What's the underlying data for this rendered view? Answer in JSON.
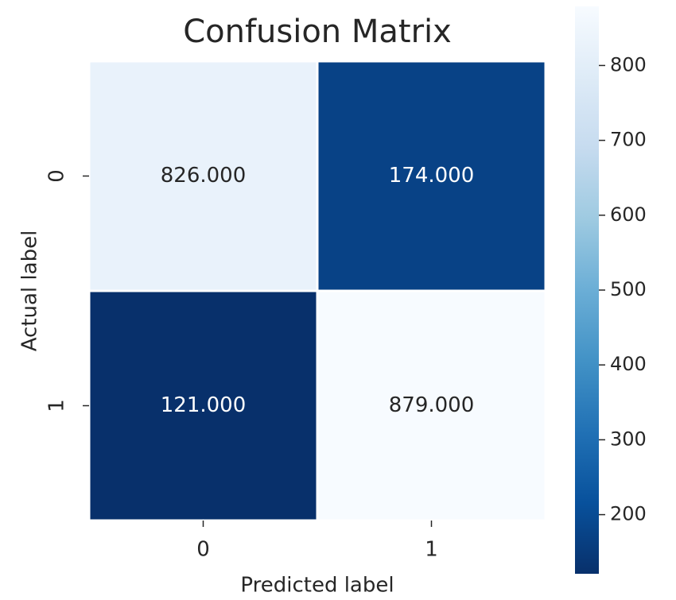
{
  "chart_data": {
    "type": "heatmap",
    "title": "Confusion Matrix",
    "xlabel": "Predicted label",
    "ylabel": "Actual label",
    "x_categories": [
      "0",
      "1"
    ],
    "y_categories": [
      "0",
      "1"
    ],
    "values": [
      [
        826,
        174
      ],
      [
        121,
        879
      ]
    ],
    "value_labels": [
      [
        "826.000",
        "174.000"
      ],
      [
        "121.000",
        "879.000"
      ]
    ],
    "colormap": [
      "#08306b",
      "#08519c",
      "#2171b5",
      "#4292c6",
      "#6baed6",
      "#9ecae1",
      "#c6dbef",
      "#deebf7",
      "#f7fbff"
    ],
    "clim": [
      121,
      879
    ],
    "colorbar_ticks": [
      200,
      300,
      400,
      500,
      600,
      700,
      800
    ]
  }
}
